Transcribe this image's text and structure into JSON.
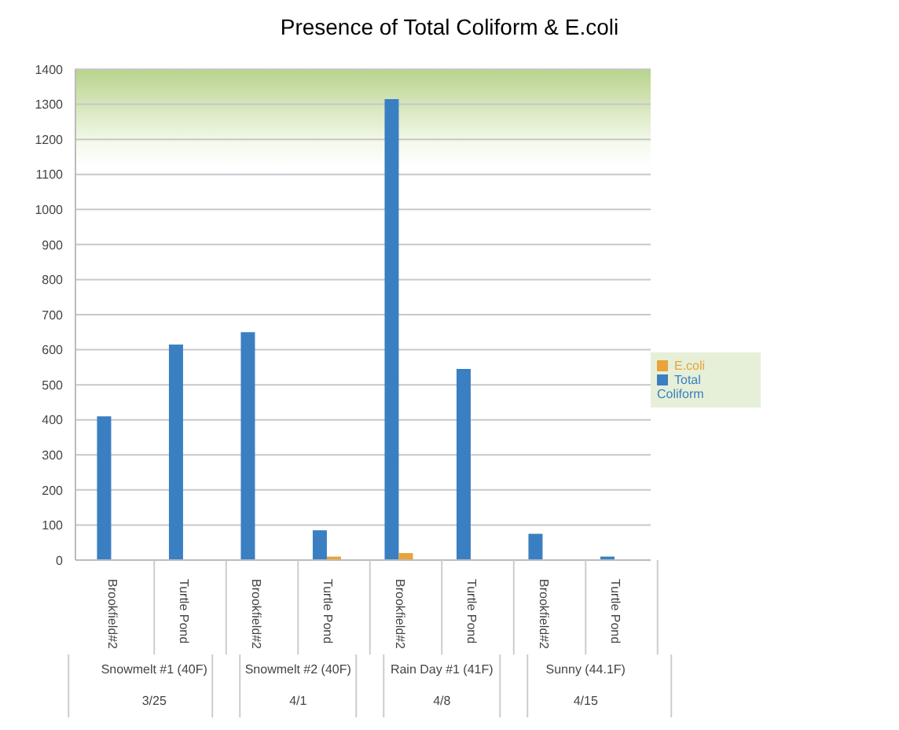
{
  "chart_data": {
    "type": "bar",
    "title": "Presence of Total Coliform & E.coli",
    "categories": [
      "Brookfield#2",
      "Turtle Pond",
      "Brookfield#2",
      "Turtle Pond",
      "Brookfield#2",
      "Turtle Pond",
      "Brookfield#2",
      "Turtle Pond"
    ],
    "series": [
      {
        "name": "Total Coliform",
        "color": "#3a7fc1",
        "values": [
          410,
          615,
          650,
          85,
          1315,
          545,
          75,
          10
        ]
      },
      {
        "name": "E.coli",
        "color": "#e8a33a",
        "values": [
          0,
          0,
          0,
          10,
          20,
          0,
          0,
          0
        ]
      }
    ],
    "annotations": [
      "Snowmelt #1 (40F)",
      "Snowmelt #2 (40F)",
      "Rain Day #1 (41F)",
      "Sunny (44.1F)",
      "3/25",
      "4/1",
      "4/8",
      "4/15"
    ],
    "ylim": [
      0,
      1400
    ],
    "yticks": [
      0,
      100,
      200,
      300,
      400,
      500,
      600,
      700,
      800,
      900,
      1000,
      1100,
      1200,
      1300,
      1400
    ],
    "grid": "y",
    "legend": "right"
  }
}
